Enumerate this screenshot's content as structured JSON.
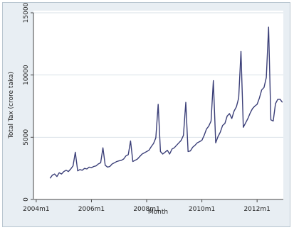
{
  "chart_data": {
    "type": "line",
    "xlabel": "Month",
    "ylabel": "Total Tax (crore taka)",
    "x_ticks": [
      "2004m1",
      "2006m1",
      "2008m1",
      "2010m1",
      "2012m1"
    ],
    "y_ticks": [
      "0",
      "5000",
      "10000",
      "15000"
    ],
    "ylim": [
      0,
      15000
    ],
    "grid": "y",
    "series": [
      {
        "name": "",
        "color": "#3b3f78",
        "x": [
          "2004m7",
          "2004m8",
          "2004m9",
          "2004m10",
          "2004m11",
          "2004m12",
          "2005m1",
          "2005m2",
          "2005m3",
          "2005m4",
          "2005m5",
          "2005m6",
          "2005m7",
          "2005m8",
          "2005m9",
          "2005m10",
          "2005m11",
          "2005m12",
          "2006m1",
          "2006m2",
          "2006m3",
          "2006m4",
          "2006m5",
          "2006m6",
          "2006m7",
          "2006m8",
          "2006m9",
          "2006m10",
          "2006m11",
          "2006m12",
          "2007m1",
          "2007m2",
          "2007m3",
          "2007m4",
          "2007m5",
          "2007m6",
          "2007m7",
          "2007m8",
          "2007m9",
          "2007m10",
          "2007m11",
          "2007m12",
          "2008m1",
          "2008m2",
          "2008m3",
          "2008m4",
          "2008m5",
          "2008m6",
          "2008m7",
          "2008m8",
          "2008m9",
          "2008m10",
          "2008m11",
          "2008m12",
          "2009m1",
          "2009m2",
          "2009m3",
          "2009m4",
          "2009m5",
          "2009m6",
          "2009m7",
          "2009m8",
          "2009m9",
          "2009m10",
          "2009m11",
          "2009m12",
          "2010m1",
          "2010m2",
          "2010m3",
          "2010m4",
          "2010m5",
          "2010m6",
          "2010m7",
          "2010m8",
          "2010m9",
          "2010m10",
          "2010m11",
          "2010m12",
          "2011m1",
          "2011m2",
          "2011m3",
          "2011m4",
          "2011m5",
          "2011m6",
          "2011m7",
          "2011m8",
          "2011m9",
          "2011m10",
          "2011m11",
          "2011m12",
          "2012m1",
          "2012m2",
          "2012m3",
          "2012m4",
          "2012m5",
          "2012m6",
          "2012m7",
          "2012m8",
          "2012m9",
          "2012m10",
          "2012m11",
          "2012m12"
        ],
        "values": [
          1700,
          1950,
          2050,
          1850,
          2150,
          2050,
          2250,
          2350,
          2250,
          2450,
          2700,
          3800,
          2300,
          2400,
          2350,
          2500,
          2450,
          2600,
          2550,
          2650,
          2700,
          2850,
          2950,
          4150,
          2750,
          2600,
          2650,
          2850,
          2950,
          3050,
          3100,
          3150,
          3250,
          3500,
          3600,
          4700,
          3050,
          3150,
          3250,
          3450,
          3650,
          3750,
          3850,
          3950,
          4250,
          4500,
          4950,
          7650,
          3850,
          3650,
          3800,
          3950,
          3650,
          4050,
          4150,
          4350,
          4550,
          4750,
          5150,
          7800,
          3850,
          3900,
          4200,
          4350,
          4550,
          4650,
          4750,
          5150,
          5650,
          5900,
          6300,
          9550,
          4550,
          5050,
          5400,
          5950,
          6100,
          6700,
          6900,
          6500,
          7100,
          7450,
          8150,
          11900,
          5800,
          6150,
          6500,
          6950,
          7300,
          7500,
          7650,
          8150,
          8800,
          9000,
          9800,
          13850,
          6400,
          6300,
          7700,
          8050,
          8050,
          7800
        ]
      }
    ]
  }
}
